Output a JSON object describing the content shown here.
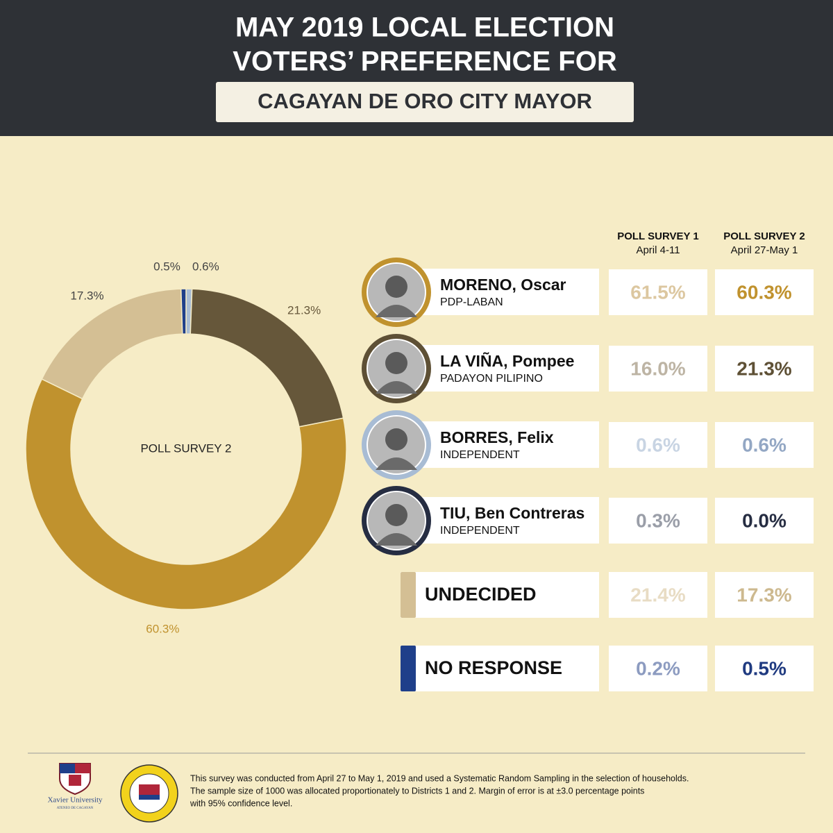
{
  "header": {
    "title_lines": [
      "MAY 2019 LOCAL ELECTION",
      "VOTERS’ PREFERENCE FOR"
    ],
    "subtitle": "CAGAYAN DE ORO CITY MAYOR"
  },
  "chart_data": {
    "type": "pie",
    "donut": true,
    "center_label": "POLL SURVEY 2",
    "categories": [
      "BORRES, Felix",
      "TIU, Ben Contreras",
      "LA VIÑA, Pompee",
      "MORENO, Oscar",
      "UNDECIDED",
      "NO RESPONSE"
    ],
    "values": [
      0.6,
      0.0,
      21.3,
      60.3,
      17.3,
      0.5
    ],
    "value_labels": [
      "0.6%",
      null,
      "21.3%",
      "60.3%",
      "17.3%",
      "0.5%"
    ],
    "colors": [
      "#a8bcd4",
      "#262d42",
      "#66573a",
      "#c0922e",
      "#d4bf94",
      "#1f3f8a"
    ],
    "label_colors": [
      "#444444",
      null,
      "#66573a",
      "#c0922e",
      "#444444",
      "#444444"
    ]
  },
  "table": {
    "columns": [
      {
        "title": "POLL SURVEY 1",
        "dates": "April 4-11"
      },
      {
        "title": "POLL SURVEY 2",
        "dates": "April 27-May 1"
      }
    ],
    "rows": [
      {
        "name": "MORENO, Oscar",
        "party": "PDP-LABAN",
        "values": [
          "61.5%",
          "60.3%"
        ],
        "colors": [
          "#dcc7a0",
          "#c0922e"
        ],
        "accent": "#c0922e"
      },
      {
        "name": "LA VIÑA, Pompee",
        "party": "PADAYON PILIPINO",
        "values": [
          "16.0%",
          "21.3%"
        ],
        "colors": [
          "#bdb4a4",
          "#5e5035"
        ],
        "accent": "#5e5035"
      },
      {
        "name": "BORRES, Felix",
        "party": "INDEPENDENT",
        "values": [
          "0.6%",
          "0.6%"
        ],
        "colors": [
          "#c8d4e3",
          "#93a7c4"
        ],
        "accent": "#a8bcd4"
      },
      {
        "name": "TIU, Ben Contreras",
        "party": "INDEPENDENT",
        "values": [
          "0.3%",
          "0.0%"
        ],
        "colors": [
          "#9a9ea8",
          "#262d42"
        ],
        "accent": "#262d42"
      },
      {
        "name": "UNDECIDED",
        "values": [
          "21.4%",
          "17.3%"
        ],
        "colors": [
          "#e8dcc4",
          "#cdb98f"
        ],
        "accent": "#d4bf94"
      },
      {
        "name": "NO RESPONSE",
        "values": [
          "0.2%",
          "0.5%"
        ],
        "colors": [
          "#8c9bc0",
          "#1f3a80"
        ],
        "accent": "#1f3f8a"
      }
    ]
  },
  "footer": {
    "logo_text": "Xavier University",
    "logo_subtext": "ATENEO DE CAGAYAN",
    "note_lines": [
      "This survey was conducted from April 27 to May 1, 2019 and used a Systematic Random Sampling in the selection of households.",
      "The sample size of 1000 was allocated proportionately to Districts 1 and 2. Margin of error is at ±3.0 percentage points",
      "with 95% confidence level."
    ]
  }
}
